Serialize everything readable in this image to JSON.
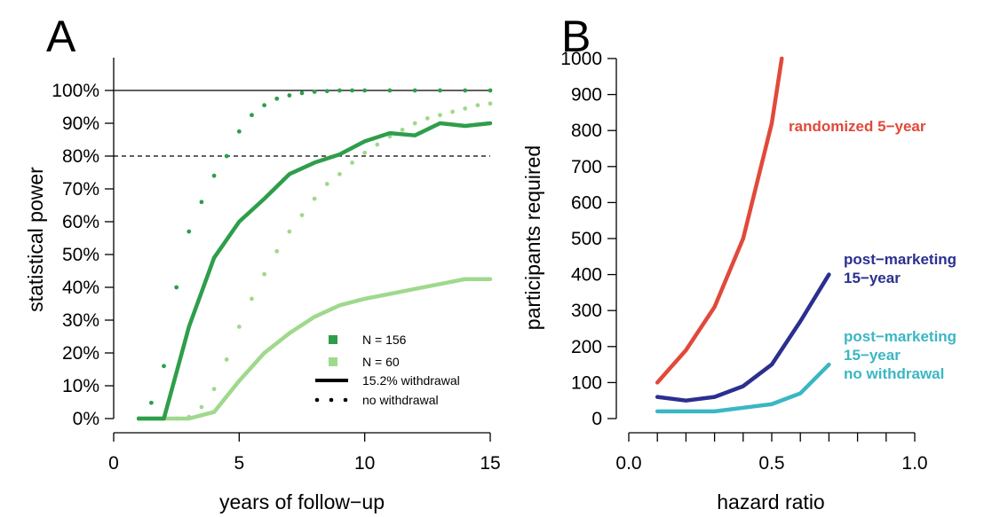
{
  "chart_data": [
    {
      "panel_label": "A",
      "type": "line",
      "xlabel": "years of follow−up",
      "ylabel": "statistical power",
      "xlim": [
        0,
        15
      ],
      "ylim": [
        0,
        100
      ],
      "x_ticks": [
        0,
        5,
        10,
        15
      ],
      "x_tick_labels": [
        "0",
        "5",
        "10",
        "15"
      ],
      "y_ticks": [
        0,
        10,
        20,
        30,
        40,
        50,
        60,
        70,
        80,
        90,
        100
      ],
      "y_tick_labels": [
        "0%",
        "10%",
        "20%",
        "30%",
        "40%",
        "50%",
        "60%",
        "70%",
        "80%",
        "90%",
        "100%"
      ],
      "reference_lines": [
        {
          "y": 100,
          "style": "solid"
        },
        {
          "y": 80,
          "style": "dashed"
        }
      ],
      "legend": {
        "position": "bottom-right",
        "entries": [
          {
            "label": "N = 156",
            "kind": "color",
            "color": "#2e9e4a"
          },
          {
            "label": "N = 60",
            "kind": "color",
            "color": "#9fd98c"
          },
          {
            "label": "15.2% withdrawal",
            "kind": "linestyle",
            "style": "solid"
          },
          {
            "label": "no withdrawal",
            "kind": "linestyle",
            "style": "dotted"
          }
        ]
      },
      "series": [
        {
          "name": "N = 156, 15.2% withdrawal",
          "color": "#2e9e4a",
          "style": "solid",
          "x": [
            1,
            2,
            3,
            4,
            5,
            6,
            7,
            8,
            9,
            10,
            11,
            12,
            13,
            14,
            15
          ],
          "y": [
            0,
            0,
            28,
            49,
            60,
            67,
            74.5,
            78,
            80.5,
            84.5,
            87,
            86.3,
            90,
            89.2,
            90
          ]
        },
        {
          "name": "N = 156, no withdrawal",
          "color": "#2e9e4a",
          "style": "dotted",
          "x": [
            1,
            1.5,
            2,
            2.5,
            3,
            3.5,
            4,
            4.5,
            5,
            5.5,
            6,
            6.5,
            7,
            7.5,
            8,
            8.5,
            9,
            9.5,
            10,
            11,
            12,
            13,
            14,
            15
          ],
          "y": [
            0,
            4.8,
            16,
            40,
            57,
            66,
            74,
            80,
            87.5,
            92.5,
            95.5,
            97.5,
            98.5,
            99.2,
            99.6,
            99.8,
            100,
            100,
            100,
            100,
            100,
            100,
            100,
            100
          ]
        },
        {
          "name": "N = 60, 15.2% withdrawal",
          "color": "#9fd98c",
          "style": "solid",
          "x": [
            1,
            2,
            3,
            4,
            5,
            6,
            7,
            8,
            9,
            10,
            11,
            12,
            13,
            14,
            15
          ],
          "y": [
            0,
            0,
            0,
            2,
            11.5,
            20,
            26,
            31,
            34.5,
            36.5,
            38,
            39.5,
            41,
            42.5,
            42.5
          ]
        },
        {
          "name": "N = 60, no withdrawal",
          "color": "#9fd98c",
          "style": "dotted",
          "x": [
            2,
            2.5,
            3,
            3.5,
            4,
            4.5,
            5,
            5.5,
            6,
            6.5,
            7,
            7.5,
            8,
            8.5,
            9,
            9.5,
            10,
            10.5,
            11,
            11.5,
            12,
            12.5,
            13,
            13.5,
            14,
            14.5,
            15
          ],
          "y": [
            0,
            0,
            0.5,
            3.5,
            9,
            18,
            28,
            36.5,
            44,
            51,
            57,
            62,
            67,
            71.5,
            74.5,
            78,
            81,
            83.5,
            86,
            88,
            90,
            91.5,
            92.5,
            93.5,
            94.5,
            95.5,
            96
          ]
        }
      ]
    },
    {
      "panel_label": "B",
      "type": "line",
      "xlabel": "hazard ratio",
      "ylabel": "participants required",
      "xlim": [
        0,
        1
      ],
      "ylim": [
        0,
        1000
      ],
      "x_ticks": [
        0.0,
        0.1,
        0.2,
        0.3,
        0.4,
        0.5,
        0.6,
        0.7,
        0.8,
        0.9,
        1.0
      ],
      "x_tick_labels": [
        "0.0",
        "",
        "",
        "",
        "",
        "0.5",
        "",
        "",
        "",
        "",
        "1.0"
      ],
      "y_ticks": [
        0,
        100,
        200,
        300,
        400,
        500,
        600,
        700,
        800,
        900,
        1000
      ],
      "y_tick_labels": [
        "0",
        "100",
        "200",
        "300",
        "400",
        "500",
        "600",
        "700",
        "800",
        "900",
        "1000"
      ],
      "series": [
        {
          "name": "randomized 5−year",
          "label_lines": [
            "randomized 5−year"
          ],
          "color": "#e1493a",
          "x": [
            0.1,
            0.2,
            0.3,
            0.4,
            0.5,
            0.535
          ],
          "y": [
            100,
            190,
            310,
            500,
            820,
            1000
          ]
        },
        {
          "name": "post−marketing 15−year",
          "label_lines": [
            "post−marketing",
            "15−year"
          ],
          "color": "#2b2f8f",
          "x": [
            0.1,
            0.2,
            0.3,
            0.4,
            0.5,
            0.6,
            0.7
          ],
          "y": [
            60,
            50,
            60,
            90,
            150,
            270,
            400
          ]
        },
        {
          "name": "post−marketing 15−year no withdrawal",
          "label_lines": [
            "post−marketing",
            "15−year",
            "no withdrawal"
          ],
          "color": "#3bb6c4",
          "x": [
            0.1,
            0.2,
            0.3,
            0.4,
            0.5,
            0.6,
            0.7
          ],
          "y": [
            20,
            20,
            20,
            30,
            40,
            70,
            150
          ]
        }
      ]
    }
  ]
}
